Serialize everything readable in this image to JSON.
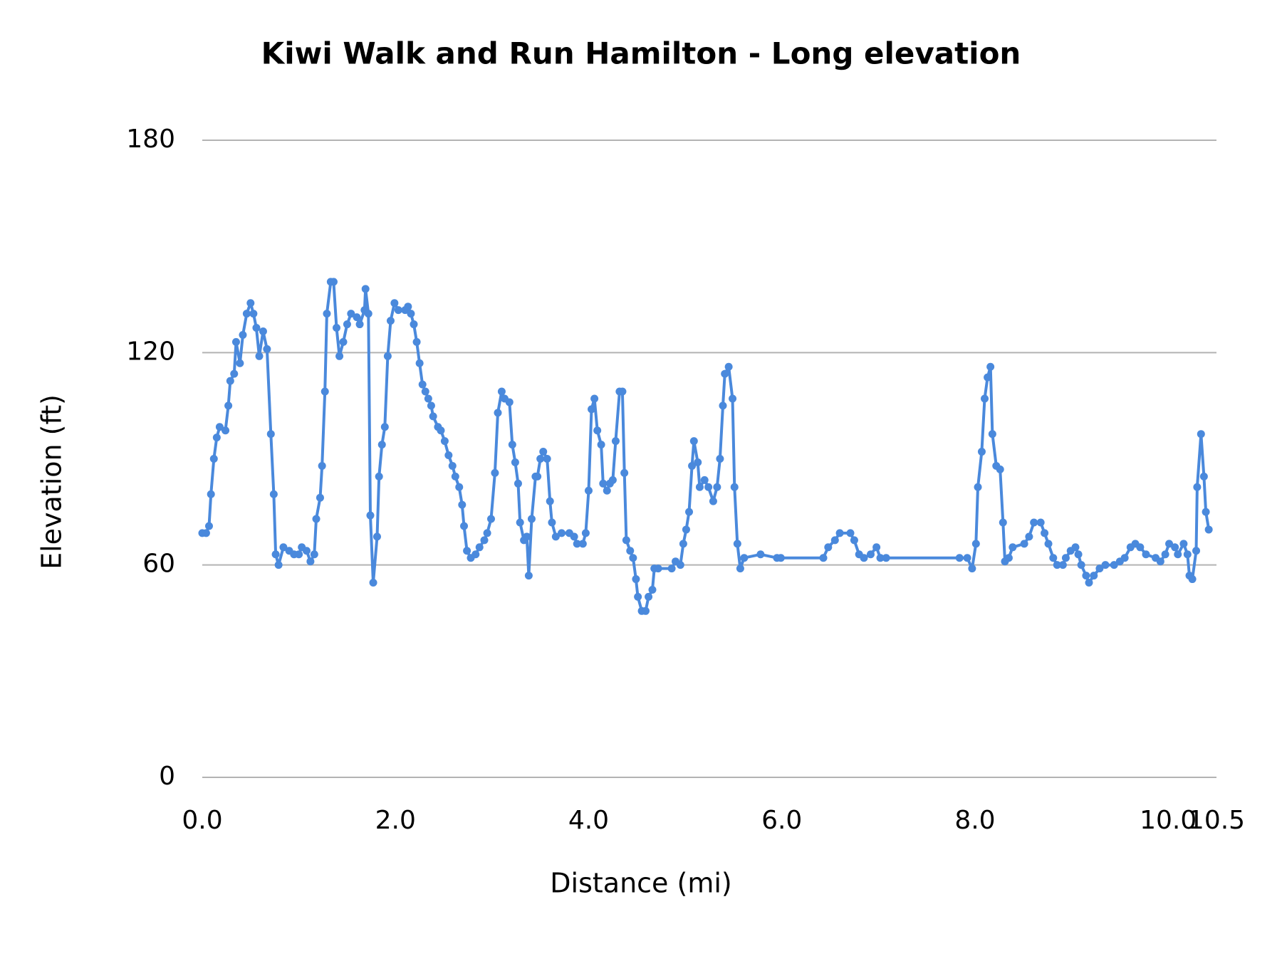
{
  "chart_data": {
    "type": "line",
    "title": "Kiwi Walk and Run Hamilton - Long elevation",
    "x_label": "Distance (mi)",
    "y_label": "Elevation (ft)",
    "color": "#4a89dc",
    "markers": true,
    "grid": true,
    "xlim": [
      0,
      10.5
    ],
    "ylim": [
      0,
      180
    ],
    "xticks": [
      {
        "value": 0,
        "label": "0.0"
      },
      {
        "value": 2,
        "label": "2.0"
      },
      {
        "value": 4,
        "label": "4.0"
      },
      {
        "value": 6,
        "label": "6.0"
      },
      {
        "value": 8,
        "label": "8.0"
      },
      {
        "value": 10,
        "label": "10.0"
      },
      {
        "value": 10.5,
        "label": "10.5"
      }
    ],
    "yticks": [
      0,
      60,
      120,
      180
    ],
    "x": [
      0.0,
      0.04,
      0.07,
      0.09,
      0.12,
      0.15,
      0.18,
      0.24,
      0.27,
      0.29,
      0.33,
      0.35,
      0.39,
      0.42,
      0.46,
      0.5,
      0.53,
      0.56,
      0.59,
      0.63,
      0.67,
      0.71,
      0.74,
      0.76,
      0.79,
      0.84,
      0.9,
      0.95,
      1.0,
      1.03,
      1.08,
      1.12,
      1.16,
      1.18,
      1.22,
      1.24,
      1.27,
      1.29,
      1.33,
      1.36,
      1.39,
      1.42,
      1.46,
      1.5,
      1.54,
      1.6,
      1.63,
      1.68,
      1.69,
      1.72,
      1.74,
      1.77,
      1.81,
      1.83,
      1.86,
      1.89,
      1.92,
      1.95,
      1.99,
      2.03,
      2.1,
      2.13,
      2.16,
      2.19,
      2.22,
      2.25,
      2.28,
      2.31,
      2.34,
      2.37,
      2.39,
      2.44,
      2.47,
      2.51,
      2.55,
      2.59,
      2.62,
      2.66,
      2.69,
      2.71,
      2.74,
      2.78,
      2.83,
      2.87,
      2.92,
      2.95,
      2.99,
      3.03,
      3.06,
      3.1,
      3.13,
      3.18,
      3.21,
      3.24,
      3.27,
      3.29,
      3.33,
      3.36,
      3.38,
      3.41,
      3.45,
      3.47,
      3.5,
      3.53,
      3.57,
      3.6,
      3.62,
      3.66,
      3.72,
      3.8,
      3.85,
      3.88,
      3.94,
      3.97,
      4.0,
      4.03,
      4.06,
      4.09,
      4.13,
      4.15,
      4.19,
      4.22,
      4.25,
      4.28,
      4.32,
      4.35,
      4.37,
      4.39,
      4.43,
      4.46,
      4.49,
      4.51,
      4.55,
      4.59,
      4.62,
      4.66,
      4.68,
      4.72,
      4.86,
      4.9,
      4.95,
      4.98,
      5.01,
      5.04,
      5.07,
      5.09,
      5.13,
      5.15,
      5.2,
      5.24,
      5.29,
      5.33,
      5.36,
      5.39,
      5.41,
      5.45,
      5.49,
      5.51,
      5.54,
      5.57,
      5.61,
      5.78,
      5.95,
      5.99,
      6.43,
      6.48,
      6.55,
      6.6,
      6.71,
      6.75,
      6.8,
      6.85,
      6.92,
      6.98,
      7.02,
      7.08,
      7.84,
      7.92,
      7.97,
      8.01,
      8.03,
      8.07,
      8.1,
      8.13,
      8.16,
      8.18,
      8.22,
      8.26,
      8.29,
      8.31,
      8.35,
      8.39,
      8.51,
      8.56,
      8.61,
      8.68,
      8.72,
      8.76,
      8.81,
      8.85,
      8.91,
      8.94,
      8.99,
      9.04,
      9.07,
      9.1,
      9.15,
      9.18,
      9.23,
      9.29,
      9.35,
      9.44,
      9.5,
      9.55,
      9.61,
      9.66,
      9.71,
      9.77,
      9.87,
      9.92,
      9.97,
      10.01,
      10.07,
      10.1,
      10.16,
      10.2,
      10.22,
      10.25,
      10.29,
      10.3,
      10.34,
      10.37,
      10.39,
      10.42
    ],
    "values": [
      69,
      69,
      71,
      80,
      90,
      96,
      99,
      98,
      105,
      112,
      114,
      123,
      117,
      125,
      131,
      134,
      131,
      127,
      119,
      126,
      121,
      97,
      80,
      63,
      60,
      65,
      64,
      63,
      63,
      65,
      64,
      61,
      63,
      73,
      79,
      88,
      109,
      131,
      140,
      140,
      127,
      119,
      123,
      128,
      131,
      130,
      128,
      132,
      138,
      131,
      74,
      55,
      68,
      85,
      94,
      99,
      119,
      129,
      134,
      132,
      132,
      133,
      131,
      128,
      123,
      117,
      111,
      109,
      107,
      105,
      102,
      99,
      98,
      95,
      91,
      88,
      85,
      82,
      77,
      71,
      64,
      62,
      63,
      65,
      67,
      69,
      73,
      86,
      103,
      109,
      107,
      106,
      94,
      89,
      83,
      72,
      67,
      68,
      57,
      73,
      85,
      85,
      90,
      92,
      90,
      78,
      72,
      68,
      69,
      69,
      68,
      66,
      66,
      69,
      81,
      104,
      107,
      98,
      94,
      83,
      81,
      83,
      84,
      95,
      109,
      109,
      86,
      67,
      64,
      62,
      56,
      51,
      47,
      47,
      51,
      53,
      59,
      59,
      59,
      61,
      60,
      66,
      70,
      75,
      88,
      95,
      89,
      82,
      84,
      82,
      78,
      82,
      90,
      105,
      114,
      116,
      107,
      82,
      66,
      59,
      62,
      63,
      62,
      62,
      62,
      65,
      67,
      69,
      69,
      67,
      63,
      62,
      63,
      65,
      62,
      62,
      62,
      62,
      59,
      66,
      82,
      92,
      107,
      113,
      116,
      97,
      88,
      87,
      72,
      61,
      62,
      65,
      66,
      68,
      72,
      72,
      69,
      66,
      62,
      60,
      60,
      62,
      64,
      65,
      63,
      60,
      57,
      55,
      57,
      59,
      60,
      60,
      61,
      62,
      65,
      66,
      65,
      63,
      62,
      61,
      63,
      66,
      65,
      63,
      66,
      63,
      57,
      56,
      64,
      82,
      97,
      85,
      75,
      70
    ]
  }
}
